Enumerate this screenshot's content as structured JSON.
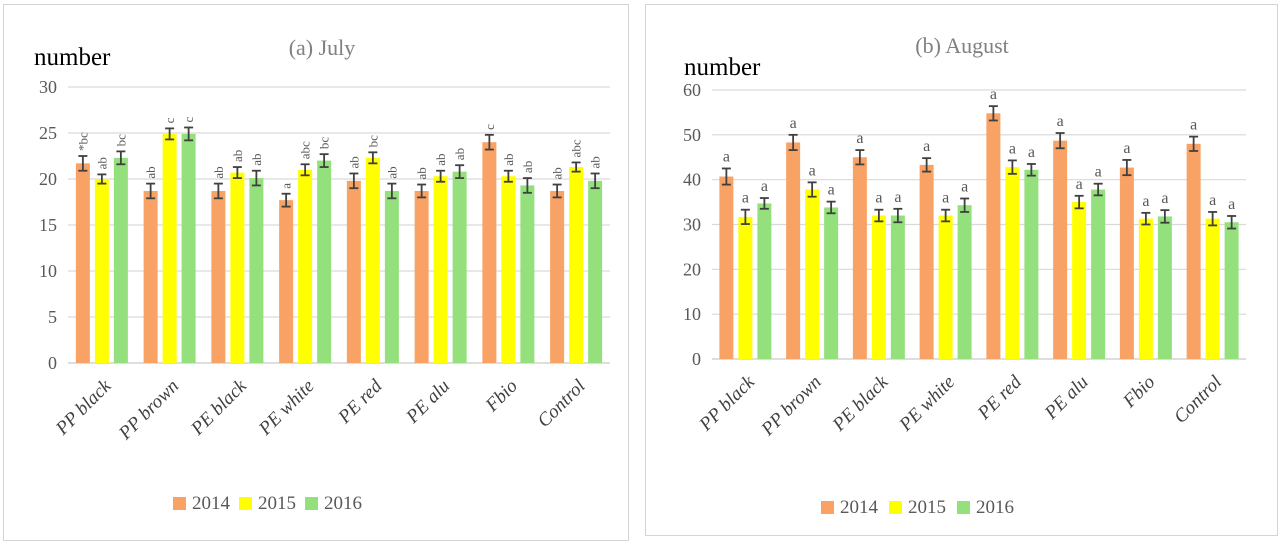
{
  "figure": {
    "theme": {
      "grid_color": "#d9d9d9",
      "baseline_color": "#c9c9c9",
      "tick_text_color": "#595959",
      "title_color": "#808080",
      "xlabel_color": "#404040",
      "error_bar_color": "#404040",
      "annotation_color": "#595959",
      "ylabel_color": "#000000",
      "legend_text_color": "#595959",
      "panel_border_color": "#d4d4d4"
    },
    "series_colors": {
      "2014": "#f9a265",
      "2015": "#ffff00",
      "2016": "#93e07d"
    }
  },
  "chart_data": [
    {
      "type": "bar",
      "title": "(a) July",
      "ylabel": "number",
      "ylim": [
        0,
        30
      ],
      "ytick_step": 5,
      "grid": true,
      "legend_position": "bottom",
      "annotation_style": "rotated",
      "categories": [
        "PP black",
        "PP brown",
        "PE black",
        "PE white",
        "PE red",
        "PE alu",
        "Fbio",
        "Control"
      ],
      "series": [
        {
          "name": "2014",
          "color": "#f9a265",
          "values": [
            21.7,
            18.7,
            18.7,
            17.7,
            19.8,
            18.7,
            24.0,
            18.7
          ],
          "errors": [
            0.8,
            0.8,
            0.8,
            0.7,
            0.8,
            0.7,
            0.8,
            0.7
          ],
          "labels": [
            "*bc",
            "ab",
            "ab",
            "a",
            "ab",
            "ab",
            "c",
            "ab"
          ]
        },
        {
          "name": "2015",
          "color": "#ffff00",
          "values": [
            20.0,
            24.9,
            20.7,
            21.0,
            22.3,
            20.3,
            20.3,
            21.3
          ],
          "errors": [
            0.5,
            0.6,
            0.6,
            0.6,
            0.6,
            0.6,
            0.6,
            0.5
          ],
          "labels": [
            "ab",
            "c",
            "ab",
            "abc",
            "bc",
            "ab",
            "ab",
            "abc"
          ]
        },
        {
          "name": "2016",
          "color": "#93e07d",
          "values": [
            22.3,
            24.9,
            20.1,
            22.0,
            18.7,
            20.8,
            19.3,
            19.8
          ],
          "errors": [
            0.7,
            0.7,
            0.8,
            0.7,
            0.8,
            0.7,
            0.8,
            0.8
          ],
          "labels": [
            "bc",
            "c",
            "ab",
            "bc",
            "ab",
            "ab",
            "ab",
            "ab"
          ]
        }
      ]
    },
    {
      "type": "bar",
      "title": "(b) August",
      "ylabel": "number",
      "ylim": [
        0,
        60
      ],
      "ytick_step": 10,
      "grid": true,
      "legend_position": "bottom",
      "annotation_style": "upright",
      "categories": [
        "PP black",
        "PP brown",
        "PE black",
        "PE white",
        "PE red",
        "PE alu",
        "Fbio",
        "Control"
      ],
      "series": [
        {
          "name": "2014",
          "color": "#f9a265",
          "values": [
            40.7,
            48.3,
            45.0,
            43.3,
            54.8,
            48.7,
            42.7,
            48.0
          ],
          "errors": [
            1.8,
            1.7,
            1.6,
            1.5,
            1.6,
            1.7,
            1.7,
            1.6
          ],
          "labels": [
            "a",
            "a",
            "a",
            "a",
            "a",
            "a",
            "a",
            "a"
          ]
        },
        {
          "name": "2015",
          "color": "#ffff00",
          "values": [
            31.7,
            37.8,
            32.0,
            32.0,
            42.8,
            35.0,
            31.3,
            31.3
          ],
          "errors": [
            1.6,
            1.6,
            1.3,
            1.3,
            1.5,
            1.4,
            1.3,
            1.5
          ],
          "labels": [
            "a",
            "a",
            "a",
            "a",
            "a",
            "a",
            "a",
            "a"
          ]
        },
        {
          "name": "2016",
          "color": "#93e07d",
          "values": [
            34.7,
            33.8,
            32.0,
            34.3,
            42.2,
            37.8,
            31.8,
            30.5
          ],
          "errors": [
            1.2,
            1.3,
            1.5,
            1.5,
            1.3,
            1.3,
            1.4,
            1.4
          ],
          "labels": [
            "a",
            "a",
            "a",
            "a",
            "a",
            "a",
            "a",
            "a"
          ]
        }
      ]
    }
  ]
}
